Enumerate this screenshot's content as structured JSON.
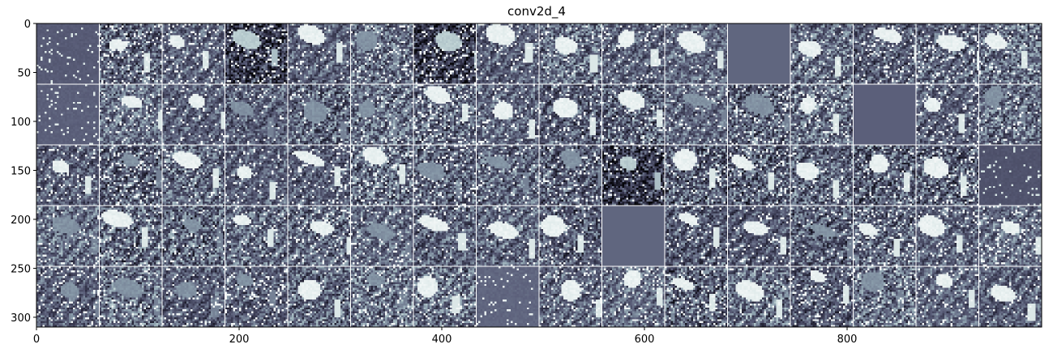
{
  "chart_data": {
    "type": "heatmap",
    "title": "conv2d_4",
    "xlabel": "",
    "ylabel": "",
    "xlim": [
      0,
      992
    ],
    "ylim": [
      310,
      0
    ],
    "x_ticks": [
      0,
      200,
      400,
      600,
      800
    ],
    "y_ticks": [
      0,
      50,
      100,
      150,
      200,
      250,
      300
    ],
    "grid": {
      "rows": 5,
      "cols": 16,
      "tile_size": 62,
      "separator_color": "#ffffff"
    },
    "colormap": "bone",
    "colormap_stops": [
      "#05050a",
      "#2f2f45",
      "#5b5f7a",
      "#8fa3b0",
      "#c7dada",
      "#ffffff"
    ],
    "blank_tiles": [
      {
        "row": 0,
        "col": 11,
        "level": 0.42
      },
      {
        "row": 1,
        "col": 13,
        "level": 0.4
      },
      {
        "row": 3,
        "col": 9,
        "level": 0.42
      }
    ],
    "dark_tiles": [
      {
        "row": 0,
        "col": 3
      },
      {
        "row": 0,
        "col": 6
      },
      {
        "row": 2,
        "col": 9
      }
    ],
    "smooth_tiles": [
      {
        "row": 0,
        "col": 0,
        "level": 0.38
      },
      {
        "row": 1,
        "col": 0,
        "level": 0.4
      },
      {
        "row": 2,
        "col": 15,
        "level": 0.35
      },
      {
        "row": 4,
        "col": 7,
        "level": 0.42
      }
    ]
  }
}
